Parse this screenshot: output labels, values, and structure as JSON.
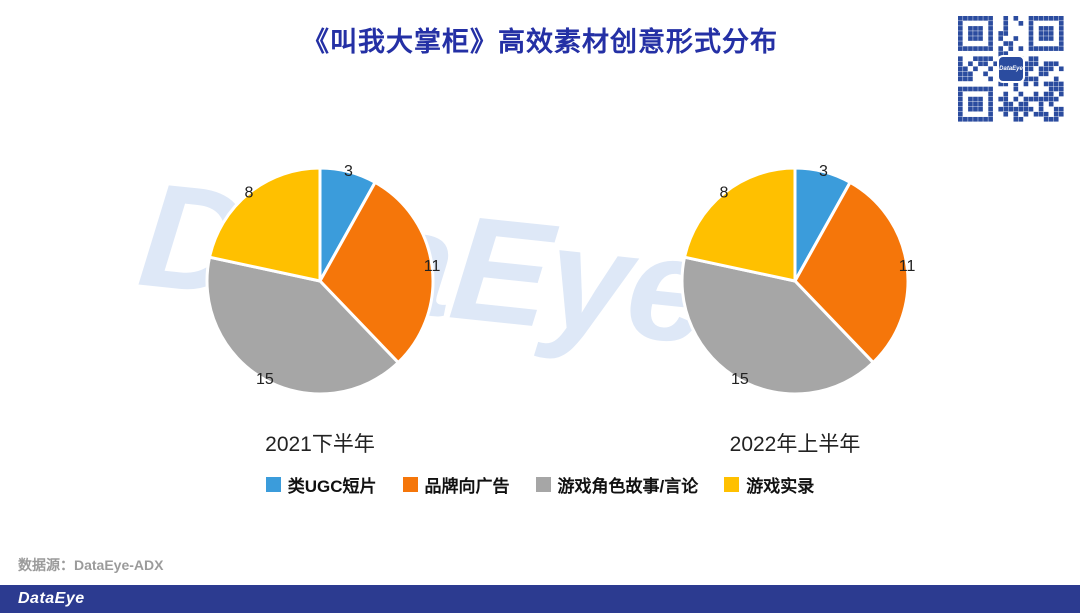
{
  "title": "《叫我大掌柜》高效素材创意形式分布",
  "watermark": "DataEye",
  "source": "数据源：DataEye-ADX",
  "footer": {
    "logo": "DataEye"
  },
  "qr": {
    "label": "DataEye"
  },
  "colors": {
    "blue": "#3B9CDB",
    "orange": "#F5760A",
    "gray": "#A6A6A6",
    "yellow": "#FFC000",
    "title": "#2430A5",
    "footer_bg": "#2C3B90",
    "watermark": "#DEE8F7",
    "qr": "#2B4C9F",
    "slice_label": "#222222"
  },
  "chart_data": [
    {
      "type": "pie",
      "title": "2021下半年",
      "categories": [
        "类UGC短片",
        "品牌向广告",
        "游戏角色故事/言论",
        "游戏实录"
      ],
      "values": [
        3,
        11,
        15,
        8
      ],
      "colors": [
        "#3B9CDB",
        "#F5760A",
        "#A6A6A6",
        "#FFC000"
      ],
      "start_angle": "top",
      "direction": "clockwise",
      "data_labels": true
    },
    {
      "type": "pie",
      "title": "2022年上半年",
      "categories": [
        "类UGC短片",
        "品牌向广告",
        "游戏角色故事/言论",
        "游戏实录"
      ],
      "values": [
        3,
        11,
        15,
        8
      ],
      "colors": [
        "#3B9CDB",
        "#F5760A",
        "#A6A6A6",
        "#FFC000"
      ],
      "start_angle": "top",
      "direction": "clockwise",
      "data_labels": true
    }
  ],
  "legend": [
    {
      "label": "类UGC短片",
      "color": "#3B9CDB"
    },
    {
      "label": "品牌向广告",
      "color": "#F5760A"
    },
    {
      "label": "游戏角色故事/言论",
      "color": "#A6A6A6"
    },
    {
      "label": "游戏实录",
      "color": "#FFC000"
    }
  ]
}
